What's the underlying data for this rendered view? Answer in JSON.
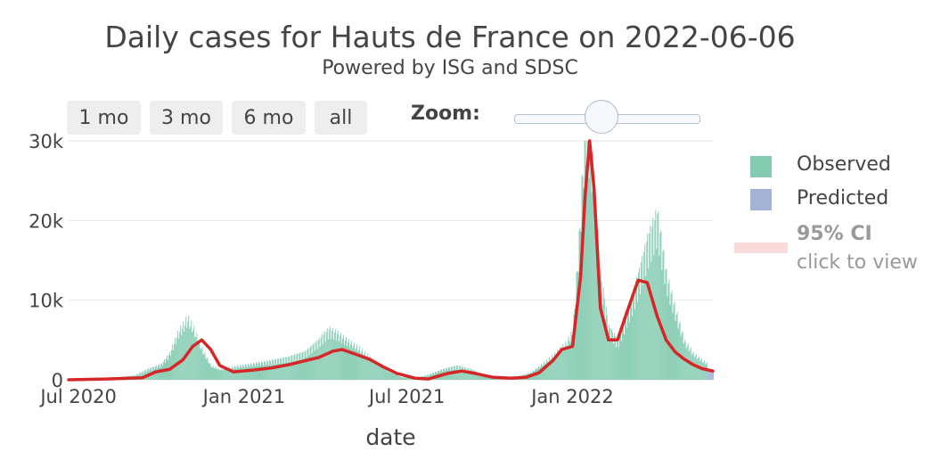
{
  "chart_data": {
    "type": "bar",
    "title": "Daily cases for Hauts de France on 2022-06-06",
    "subtitle": "Powered by ISG and SDSC",
    "xlabel": "date",
    "ylabel": "",
    "x_ticks": [
      "Jul 2020",
      "Jan 2021",
      "Jul 2021",
      "Jan 2022"
    ],
    "y_ticks": [
      "0",
      "10k",
      "20k",
      "30k"
    ],
    "xlim": [
      "2020-06-20",
      "2022-06-06"
    ],
    "ylim": [
      0,
      30000
    ],
    "grid": true,
    "legend_position": "right",
    "series": [
      {
        "name": "Observed",
        "kind": "bar",
        "color": "#66c2a5",
        "x": [
          "2020-06-20",
          "2020-07-15",
          "2020-08-15",
          "2020-09-01",
          "2020-09-15",
          "2020-10-01",
          "2020-10-10",
          "2020-10-20",
          "2020-10-30",
          "2020-11-05",
          "2020-11-15",
          "2020-11-25",
          "2020-12-05",
          "2020-12-20",
          "2021-01-10",
          "2021-02-01",
          "2021-02-20",
          "2021-03-10",
          "2021-03-25",
          "2021-04-05",
          "2021-04-15",
          "2021-04-25",
          "2021-05-10",
          "2021-05-25",
          "2021-06-10",
          "2021-06-25",
          "2021-07-10",
          "2021-07-25",
          "2021-08-10",
          "2021-08-25",
          "2021-09-10",
          "2021-09-25",
          "2021-10-15",
          "2021-11-01",
          "2021-11-15",
          "2021-12-01",
          "2021-12-15",
          "2021-12-25",
          "2022-01-01",
          "2022-01-08",
          "2022-01-15",
          "2022-01-22",
          "2022-02-01",
          "2022-02-10",
          "2022-02-20",
          "2022-03-01",
          "2022-03-15",
          "2022-03-25",
          "2022-04-05",
          "2022-04-15",
          "2022-04-25",
          "2022-05-05",
          "2022-05-15",
          "2022-05-25",
          "2022-06-05"
        ],
        "values": [
          100,
          150,
          300,
          500,
          1200,
          1800,
          3000,
          5500,
          7000,
          6000,
          3500,
          1600,
          1200,
          1500,
          1800,
          2200,
          2600,
          3200,
          4600,
          5800,
          5300,
          4500,
          3500,
          2200,
          1000,
          300,
          200,
          600,
          1200,
          1600,
          1200,
          500,
          300,
          400,
          800,
          2000,
          3200,
          4200,
          5500,
          16000,
          30000,
          26000,
          12000,
          6000,
          4500,
          7500,
          12000,
          16000,
          19000,
          12000,
          8000,
          4500,
          3000,
          2200,
          1500
        ]
      },
      {
        "name": "Predicted",
        "kind": "bar",
        "color": "#8da0cb",
        "x": [
          "2022-05-31",
          "2022-06-06"
        ],
        "values": [
          1200,
          1100
        ]
      },
      {
        "name": "Trend",
        "kind": "line",
        "color": "#d62728",
        "x": [
          "2020-06-20",
          "2020-08-01",
          "2020-09-10",
          "2020-09-25",
          "2020-10-10",
          "2020-10-25",
          "2020-11-05",
          "2020-11-15",
          "2020-11-25",
          "2020-12-05",
          "2020-12-20",
          "2021-01-10",
          "2021-02-01",
          "2021-02-20",
          "2021-03-10",
          "2021-03-25",
          "2021-04-10",
          "2021-04-20",
          "2021-05-05",
          "2021-05-20",
          "2021-06-05",
          "2021-06-20",
          "2021-07-10",
          "2021-07-25",
          "2021-08-15",
          "2021-08-31",
          "2021-09-15",
          "2021-10-05",
          "2021-10-25",
          "2021-11-10",
          "2021-11-25",
          "2021-12-10",
          "2021-12-20",
          "2022-01-01",
          "2022-01-10",
          "2022-01-15",
          "2022-01-20",
          "2022-01-25",
          "2022-02-01",
          "2022-02-10",
          "2022-02-20",
          "2022-03-01",
          "2022-03-15",
          "2022-03-25",
          "2022-04-05",
          "2022-04-15",
          "2022-04-25",
          "2022-05-05",
          "2022-05-15",
          "2022-05-25",
          "2022-06-06"
        ],
        "values": [
          0,
          100,
          250,
          1000,
          1300,
          2500,
          4200,
          5000,
          3800,
          1800,
          1000,
          1200,
          1500,
          1900,
          2400,
          2800,
          3600,
          3800,
          3200,
          2600,
          1600,
          800,
          200,
          100,
          800,
          1100,
          800,
          300,
          200,
          300,
          900,
          2400,
          3800,
          4200,
          13000,
          23000,
          30500,
          24000,
          9000,
          5000,
          5000,
          8000,
          12500,
          12200,
          8000,
          5000,
          3500,
          2600,
          1900,
          1400,
          1100
        ]
      }
    ],
    "legend": {
      "observed_label": "Observed",
      "predicted_label": "Predicted",
      "ci_label": "95% CI",
      "ci_sub": "click to view"
    }
  },
  "controls": {
    "range_buttons": [
      "1 mo",
      "3 mo",
      "6 mo",
      "all"
    ],
    "zoom_label": "Zoom:"
  },
  "colors": {
    "observed": "#66c2a5",
    "predicted": "#8da0cb",
    "trend": "#d62728",
    "ci": "#fadada",
    "grid": "#e6e6e6"
  }
}
